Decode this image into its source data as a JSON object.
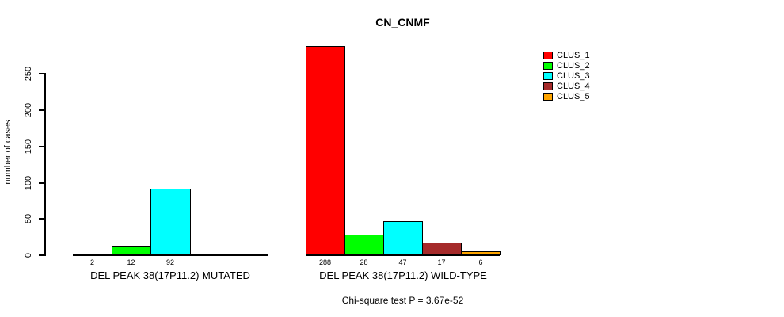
{
  "chart_data": {
    "type": "bar",
    "title": "CN_CNMF",
    "ylabel": "number of cases",
    "ylim": [
      0,
      250
    ],
    "yticks": [
      0,
      50,
      100,
      150,
      200,
      250
    ],
    "grid": false,
    "legend": {
      "position": "right",
      "items": [
        {
          "label": "CLUS_1",
          "color": "#FF0000"
        },
        {
          "label": "CLUS_2",
          "color": "#00FF00"
        },
        {
          "label": "CLUS_3",
          "color": "#00FFFF"
        },
        {
          "label": "CLUS_4",
          "color": "#A52A2A"
        },
        {
          "label": "CLUS_5",
          "color": "#FFA500"
        }
      ]
    },
    "groups": [
      {
        "label": "DEL PEAK 38(17P11.2) MUTATED",
        "values": [
          2,
          12,
          92,
          0,
          0
        ],
        "value_labels": [
          "2",
          "12",
          "92",
          "",
          ""
        ]
      },
      {
        "label": "DEL PEAK 38(17P11.2) WILD-TYPE",
        "values": [
          288,
          28,
          47,
          17,
          6
        ],
        "value_labels": [
          "288",
          "28",
          "47",
          "17",
          "6"
        ]
      }
    ],
    "annotation": "Chi-square test P = 3.67e-52"
  }
}
